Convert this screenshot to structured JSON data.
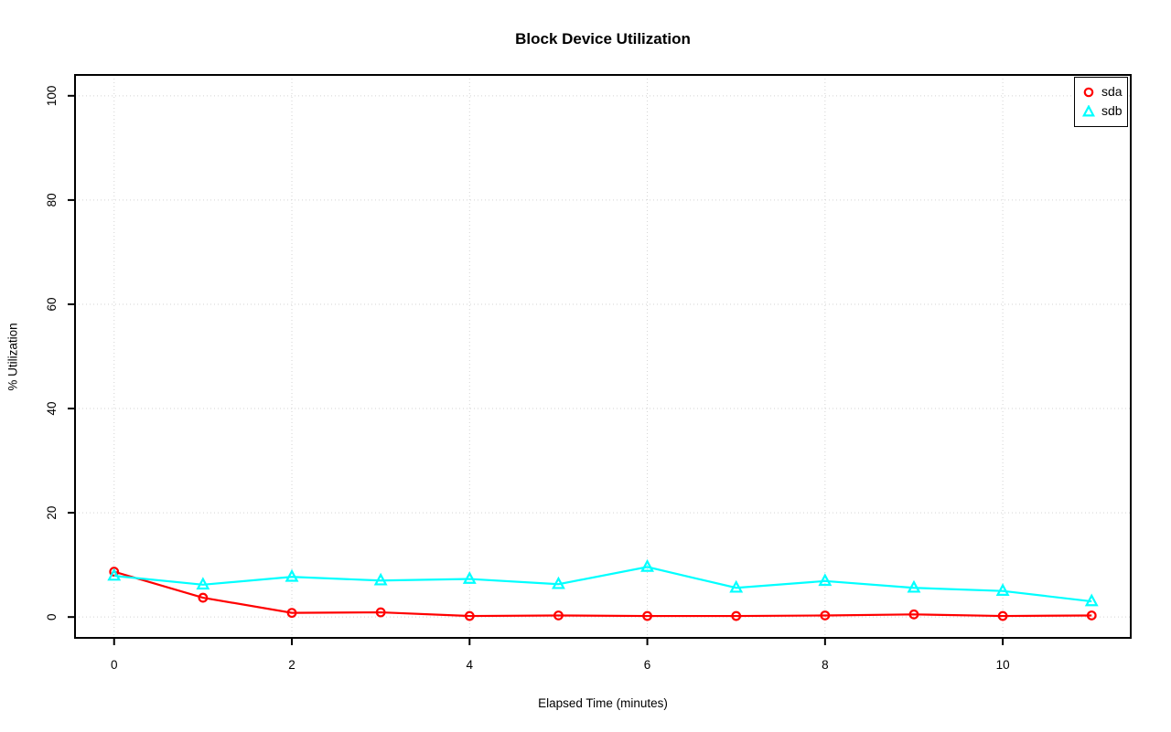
{
  "chart_data": {
    "type": "line",
    "title": "Block Device Utilization",
    "xlabel": "Elapsed Time (minutes)",
    "ylabel": "% Utilization",
    "x": [
      0,
      1,
      2,
      3,
      4,
      5,
      6,
      7,
      8,
      9,
      10,
      11
    ],
    "series": [
      {
        "name": "sda",
        "color": "#FF0000",
        "marker": "circle",
        "values": [
          8.7,
          3.7,
          0.8,
          0.9,
          0.2,
          0.3,
          0.2,
          0.2,
          0.3,
          0.5,
          0.2,
          0.3
        ]
      },
      {
        "name": "sdb",
        "color": "#00FFFF",
        "marker": "triangle",
        "values": [
          7.9,
          6.2,
          7.7,
          7.0,
          7.3,
          6.3,
          9.6,
          5.6,
          6.9,
          5.6,
          5.0,
          3.0
        ]
      }
    ],
    "xticks": [
      0,
      2,
      4,
      6,
      8,
      10
    ],
    "yticks": [
      0,
      20,
      40,
      60,
      80,
      100
    ],
    "xlim": [
      -0.44,
      11.44
    ],
    "ylim": [
      -4,
      104
    ],
    "grid": true,
    "grid_color": "#D3D3D3",
    "axis_color": "#000000",
    "background_color": "#FFFFFF",
    "legend_position": "top-right",
    "legend_entries": [
      "sda",
      "sdb"
    ]
  }
}
